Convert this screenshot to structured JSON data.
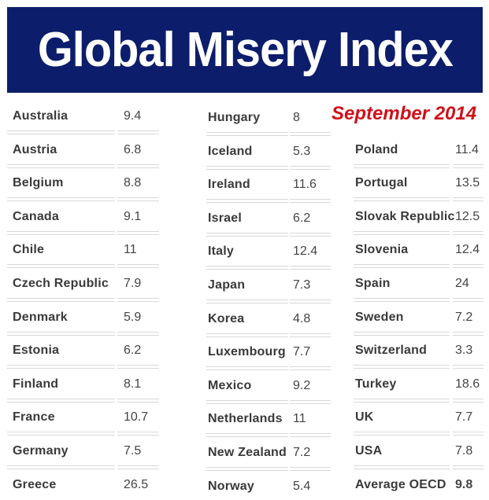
{
  "title": "Global Misery Index",
  "date": "September 2014",
  "columns": [
    {
      "start_row": 0,
      "rows": [
        {
          "country": "Australia",
          "value": "9.4"
        },
        {
          "country": "Austria",
          "value": "6.8"
        },
        {
          "country": "Belgium",
          "value": "8.8"
        },
        {
          "country": "Canada",
          "value": "9.1"
        },
        {
          "country": "Chile",
          "value": "11"
        },
        {
          "country": "Czech Republic",
          "value": "7.9"
        },
        {
          "country": "Denmark",
          "value": "5.9"
        },
        {
          "country": "Estonia",
          "value": "6.2"
        },
        {
          "country": "Finland",
          "value": "8.1"
        },
        {
          "country": "France",
          "value": "10.7"
        },
        {
          "country": "Germany",
          "value": "7.5"
        },
        {
          "country": "Greece",
          "value": "26.5"
        }
      ]
    },
    {
      "start_row": 0,
      "rows": [
        {
          "country": "Hungary",
          "value": "8"
        },
        {
          "country": "Iceland",
          "value": "5.3"
        },
        {
          "country": "Ireland",
          "value": "11.6"
        },
        {
          "country": "Israel",
          "value": "6.2"
        },
        {
          "country": "Italy",
          "value": "12.4"
        },
        {
          "country": "Japan",
          "value": "7.3"
        },
        {
          "country": "Korea",
          "value": "4.8"
        },
        {
          "country": "Luxembourg",
          "value": "7.7"
        },
        {
          "country": "Mexico",
          "value": "9.2"
        },
        {
          "country": "Netherlands",
          "value": "11"
        },
        {
          "country": "New Zealand",
          "value": "7.2"
        },
        {
          "country": "Norway",
          "value": "5.4"
        }
      ]
    },
    {
      "start_row": 1,
      "rows": [
        {
          "country": "Poland",
          "value": "11.4"
        },
        {
          "country": "Portugal",
          "value": "13.5"
        },
        {
          "country": "Slovak Republic",
          "value": "12.5"
        },
        {
          "country": "Slovenia",
          "value": "12.4"
        },
        {
          "country": "Spain",
          "value": "24"
        },
        {
          "country": "Sweden",
          "value": "7.2"
        },
        {
          "country": "Switzerland",
          "value": "3.3"
        },
        {
          "country": "Turkey",
          "value": "18.6"
        },
        {
          "country": "UK",
          "value": "7.7"
        },
        {
          "country": "USA",
          "value": "7.8"
        },
        {
          "country": "Average OECD",
          "value": "9.8",
          "bold": true
        }
      ]
    }
  ]
}
